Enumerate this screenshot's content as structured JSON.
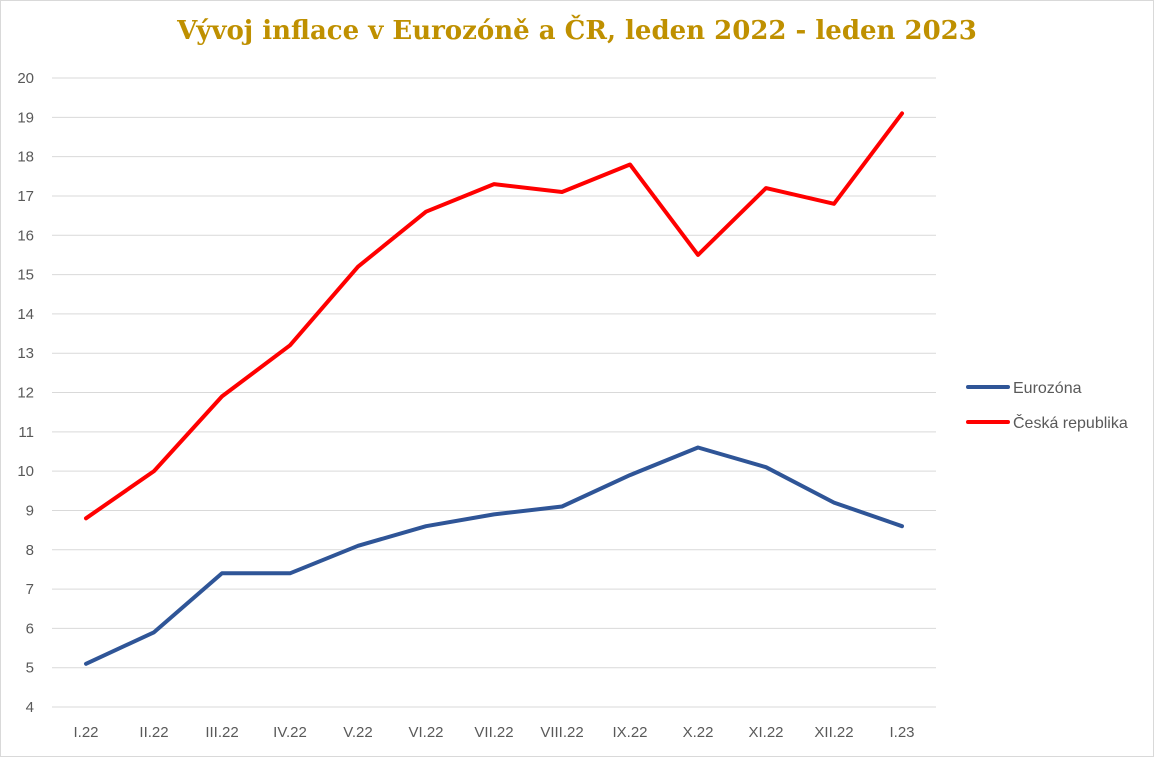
{
  "chart_data": {
    "type": "line",
    "title": "Vývoj inflace v Eurozóně a ČR, leden 2022 - leden 2023",
    "categories": [
      "I.22",
      "II.22",
      "III.22",
      "IV.22",
      "V.22",
      "VI.22",
      "VII.22",
      "VIII.22",
      "IX.22",
      "X.22",
      "XI.22",
      "XII.22",
      "I.23"
    ],
    "series": [
      {
        "name": "Eurozóna",
        "color": "#2f5597",
        "values": [
          5.1,
          5.9,
          7.4,
          7.4,
          8.1,
          8.6,
          8.9,
          9.1,
          9.9,
          10.6,
          10.1,
          9.2,
          8.6
        ]
      },
      {
        "name": "Česká republika",
        "color": "#ff0000",
        "values": [
          8.8,
          10.0,
          11.9,
          13.2,
          15.2,
          16.6,
          17.3,
          17.1,
          17.8,
          15.5,
          17.2,
          16.8,
          19.1
        ]
      }
    ],
    "ylim": [
      4,
      20
    ],
    "yticks": [
      4,
      5,
      6,
      7,
      8,
      9,
      10,
      11,
      12,
      13,
      14,
      15,
      16,
      17,
      18,
      19,
      20
    ],
    "grid": true,
    "legend": "right"
  }
}
